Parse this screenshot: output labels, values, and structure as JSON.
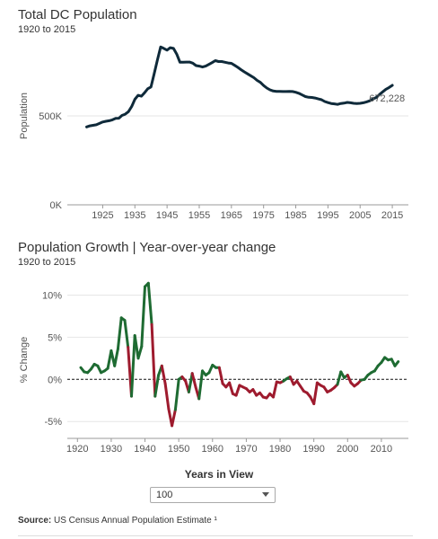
{
  "colors": {
    "population_line": "#0f2a3a",
    "growth_positive": "#1e6b32",
    "growth_negative": "#9e1b2e",
    "grid": "#e6e6e6"
  },
  "chart_data": [
    {
      "type": "line",
      "title": "Total DC Population",
      "subtitle": "1920 to 2015",
      "ylabel": "Population",
      "xlabel": "",
      "xlim": [
        1914,
        2020
      ],
      "ylim": [
        0,
        950000
      ],
      "x_ticks": [
        1925,
        1935,
        1945,
        1955,
        1965,
        1975,
        1985,
        1995,
        2005,
        2015
      ],
      "y_ticks": [
        {
          "value": 0,
          "label": "0K"
        },
        {
          "value": 500000,
          "label": "500K"
        }
      ],
      "annotation": {
        "x": 2015,
        "y": 672228,
        "label": "672,228"
      },
      "series": [
        {
          "x": [
            1920,
            1921,
            1922,
            1923,
            1924,
            1925,
            1926,
            1927,
            1928,
            1929,
            1930,
            1931,
            1932,
            1933,
            1934,
            1935,
            1936,
            1937,
            1938,
            1939,
            1940,
            1941,
            1942,
            1943,
            1944,
            1945,
            1946,
            1947,
            1948,
            1949,
            1950,
            1951,
            1952,
            1953,
            1954,
            1955,
            1956,
            1957,
            1958,
            1959,
            1960,
            1961,
            1962,
            1963,
            1964,
            1965,
            1966,
            1967,
            1968,
            1969,
            1970,
            1971,
            1972,
            1973,
            1974,
            1975,
            1976,
            1977,
            1978,
            1979,
            1980,
            1981,
            1982,
            1983,
            1984,
            1985,
            1986,
            1987,
            1988,
            1989,
            1990,
            1991,
            1992,
            1993,
            1994,
            1995,
            1996,
            1997,
            1998,
            1999,
            2000,
            2001,
            2002,
            2003,
            2004,
            2005,
            2006,
            2007,
            2008,
            2009,
            2010,
            2011,
            2012,
            2013,
            2014,
            2015
          ],
          "y": [
            438000,
            444000,
            447000,
            450000,
            458000,
            466000,
            470000,
            473000,
            478000,
            486000,
            487000,
            503000,
            510000,
            524000,
            553000,
            594000,
            616000,
            611000,
            630000,
            653000,
            663000,
            738000,
            815000,
            888000,
            880000,
            870000,
            884000,
            880000,
            848000,
            802000,
            802000,
            803000,
            803000,
            797000,
            783000,
            780000,
            775000,
            780000,
            790000,
            800000,
            811000,
            806000,
            806000,
            802000,
            798000,
            796000,
            785000,
            773000,
            760000,
            748000,
            737000,
            726000,
            715000,
            700000,
            689000,
            671000,
            657000,
            647000,
            640000,
            638000,
            638000,
            637000,
            637000,
            638000,
            637000,
            633000,
            627000,
            618000,
            609000,
            605000,
            604000,
            601000,
            596000,
            591000,
            581000,
            575000,
            570000,
            568000,
            565000,
            570000,
            572000,
            576000,
            574000,
            571000,
            570000,
            571000,
            574000,
            579000,
            585000,
            596000,
            604000,
            620000,
            635000,
            650000,
            660000,
            672228
          ]
        }
      ]
    },
    {
      "type": "line",
      "title": "Population Growth | Year-over-year change",
      "subtitle": "1920 to 2015",
      "ylabel": "% Change",
      "xlabel": "",
      "xlim": [
        1917,
        2018
      ],
      "ylim": [
        -7,
        12.5
      ],
      "reference_line": 0,
      "x_ticks": [
        1920,
        1930,
        1940,
        1950,
        1960,
        1970,
        1980,
        1990,
        2000,
        2010
      ],
      "y_ticks": [
        {
          "value": 10,
          "label": "10%"
        },
        {
          "value": 5,
          "label": "5%"
        },
        {
          "value": 0,
          "label": "0%"
        },
        {
          "value": -5,
          "label": "-5%"
        }
      ],
      "series": [
        {
          "x": [
            1921,
            1922,
            1923,
            1924,
            1925,
            1926,
            1927,
            1928,
            1929,
            1930,
            1931,
            1932,
            1933,
            1934,
            1935,
            1936,
            1937,
            1938,
            1939,
            1940,
            1941,
            1942,
            1943,
            1944,
            1945,
            1946,
            1947,
            1948,
            1949,
            1950,
            1951,
            1952,
            1953,
            1954,
            1955,
            1956,
            1957,
            1958,
            1959,
            1960,
            1961,
            1962,
            1963,
            1964,
            1965,
            1966,
            1967,
            1968,
            1969,
            1970,
            1971,
            1972,
            1973,
            1974,
            1975,
            1976,
            1977,
            1978,
            1979,
            1980,
            1981,
            1982,
            1983,
            1984,
            1985,
            1986,
            1987,
            1988,
            1989,
            1990,
            1991,
            1992,
            1993,
            1994,
            1995,
            1996,
            1997,
            1998,
            1999,
            2000,
            2001,
            2002,
            2003,
            2004,
            2005,
            2006,
            2007,
            2008,
            2009,
            2010,
            2011,
            2012,
            2013,
            2014,
            2015
          ],
          "y": [
            1.4,
            0.9,
            0.8,
            1.2,
            1.8,
            1.6,
            0.8,
            1.0,
            1.3,
            3.4,
            1.6,
            3.6,
            7.3,
            7.0,
            3.8,
            -2.0,
            5.2,
            2.5,
            3.9,
            11.0,
            11.4,
            6.5,
            -2.0,
            0.5,
            1.6,
            -0.5,
            -3.5,
            -5.5,
            -3.6,
            0.0,
            0.3,
            -0.2,
            -1.5,
            0.7,
            -0.9,
            -2.3,
            1.0,
            0.5,
            0.8,
            1.7,
            1.4,
            1.4,
            -0.5,
            -0.9,
            -0.4,
            -1.7,
            -1.9,
            -0.7,
            -0.9,
            -1.1,
            -1.5,
            -1.2,
            -1.9,
            -1.6,
            -2.1,
            -2.2,
            -1.7,
            -2.1,
            -0.3,
            -0.4,
            -0.2,
            0.1,
            0.3,
            -0.6,
            -0.2,
            -0.8,
            -1.4,
            -1.6,
            -2.1,
            -2.9,
            -0.4,
            -0.7,
            -0.9,
            -1.5,
            -1.3,
            -1.0,
            -0.6,
            0.9,
            0.2,
            0.5,
            -0.4,
            -0.8,
            -0.5,
            -0.1,
            0.0,
            0.5,
            0.8,
            1.0,
            1.6,
            2.0,
            2.6,
            2.3,
            2.4,
            1.6,
            2.1
          ]
        }
      ]
    }
  ],
  "controls": {
    "label": "Years in View",
    "selected": "100"
  },
  "source": {
    "prefix": "Source:",
    "text": " US Census Annual Population Estimate ¹"
  }
}
